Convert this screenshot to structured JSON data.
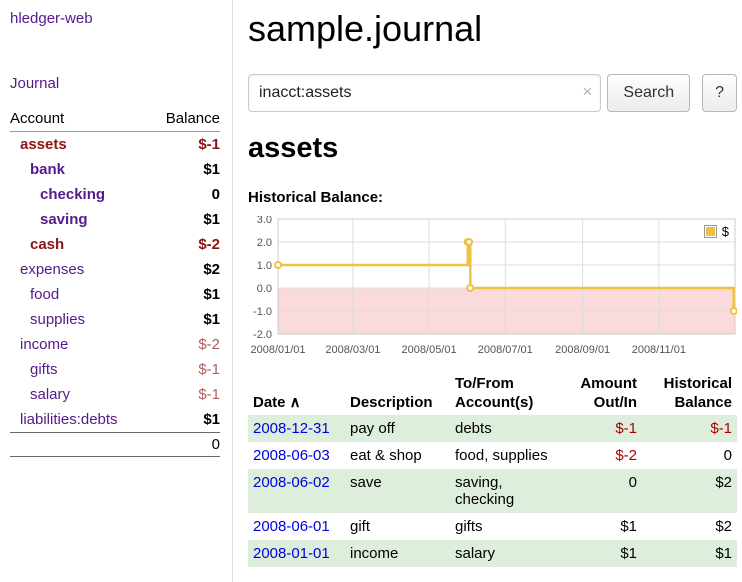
{
  "colors": {
    "purple": "#551a8b",
    "blue": "#0000dd",
    "negStrong": "#8b1414",
    "negTable": "#aa0000",
    "negSoft": "#b06060",
    "rowGreen": "#ddeedd"
  },
  "app": {
    "title": "hledger-web"
  },
  "sidebar": {
    "journal_label": "Journal",
    "account_col": "Account",
    "balance_col": "Balance",
    "accounts": [
      {
        "name": "assets",
        "balance": "$-1",
        "indent": 1,
        "name_class": "name-neg",
        "bal_class": "bal-neg"
      },
      {
        "name": "bank",
        "balance": "$1",
        "indent": 2,
        "name_class": "name-bold",
        "bal_class": "bal"
      },
      {
        "name": "checking",
        "balance": "0",
        "indent": 3,
        "name_class": "name-bold",
        "bal_class": "bal"
      },
      {
        "name": "saving",
        "balance": "$1",
        "indent": 3,
        "name_class": "name-bold",
        "bal_class": "bal"
      },
      {
        "name": "cash",
        "balance": "$-2",
        "indent": 2,
        "name_class": "name-neg",
        "bal_class": "bal-neg"
      },
      {
        "name": "expenses",
        "balance": "$2",
        "indent": 1,
        "name_class": "name",
        "bal_class": "bal"
      },
      {
        "name": "food",
        "balance": "$1",
        "indent": 2,
        "name_class": "name",
        "bal_class": "bal"
      },
      {
        "name": "supplies",
        "balance": "$1",
        "indent": 2,
        "name_class": "name",
        "bal_class": "bal"
      },
      {
        "name": "income",
        "balance": "$-2",
        "indent": 1,
        "name_class": "name",
        "bal_class": "bal-neg-soft"
      },
      {
        "name": "gifts",
        "balance": "$-1",
        "indent": 2,
        "name_class": "name",
        "bal_class": "bal-neg-soft"
      },
      {
        "name": "salary",
        "balance": "$-1",
        "indent": 2,
        "name_class": "name",
        "bal_class": "bal-neg-soft"
      },
      {
        "name": "liabilities:debts",
        "balance": "$1",
        "indent": 1,
        "name_class": "name",
        "bal_class": "bal"
      }
    ],
    "total": "0"
  },
  "main": {
    "title": "sample.journal",
    "account_title": "assets",
    "chart_label": "Historical Balance:"
  },
  "search": {
    "value": "inacct:assets",
    "clear_icon": "×",
    "search_label": "Search",
    "help_label": "?"
  },
  "chart_data": {
    "type": "line",
    "step": true,
    "title": "Historical Balance",
    "x_range": [
      "2008-01-01",
      "2009-01-01"
    ],
    "y_range": [
      -2,
      3
    ],
    "y_ticks": [
      3,
      2,
      1,
      0,
      -1,
      -2
    ],
    "x_ticks": [
      {
        "date": "2008-01-01",
        "label": "2008/01/01"
      },
      {
        "date": "2008-03-01",
        "label": "2008/03/01"
      },
      {
        "date": "2008-05-01",
        "label": "2008/05/01"
      },
      {
        "date": "2008-07-01",
        "label": "2008/07/01"
      },
      {
        "date": "2008-09-01",
        "label": "2008/09/01"
      },
      {
        "date": "2008-11-01",
        "label": "2008/11/01"
      }
    ],
    "series": [
      {
        "name": "$",
        "color": "#edc240",
        "points": [
          [
            "2008-01-01",
            1
          ],
          [
            "2008-06-01",
            2
          ],
          [
            "2008-06-02",
            2
          ],
          [
            "2008-06-03",
            0
          ],
          [
            "2008-12-31",
            -1
          ]
        ]
      }
    ],
    "negative_region": {
      "from": 0,
      "to": -2,
      "color": "#fadada"
    },
    "legend": {
      "label": "$",
      "position": "top-right"
    },
    "grid": true
  },
  "register": {
    "sort_icon": "∧",
    "columns": [
      {
        "line1": "Date",
        "line2": "",
        "align": "left",
        "sortable": true
      },
      {
        "line1": "Description",
        "line2": "",
        "align": "left"
      },
      {
        "line1": "To/From",
        "line2": "Account(s)",
        "align": "left"
      },
      {
        "line1": "Amount",
        "line2": "Out/In",
        "align": "right"
      },
      {
        "line1": "Historical",
        "line2": "Balance",
        "align": "right"
      }
    ],
    "rows": [
      {
        "date": "2008-12-31",
        "description": "pay off",
        "accounts": "debts",
        "amount": "$-1",
        "amount_neg": true,
        "balance": "$-1",
        "balance_neg": true,
        "shaded": true
      },
      {
        "date": "2008-06-03",
        "description": "eat & shop",
        "accounts": "food, supplies",
        "amount": "$-2",
        "amount_neg": true,
        "balance": "0",
        "balance_neg": false,
        "shaded": false
      },
      {
        "date": "2008-06-02",
        "description": "save",
        "accounts": "saving, checking",
        "amount": "0",
        "amount_neg": false,
        "balance": "$2",
        "balance_neg": false,
        "shaded": true
      },
      {
        "date": "2008-06-01",
        "description": "gift",
        "accounts": "gifts",
        "amount": "$1",
        "amount_neg": false,
        "balance": "$2",
        "balance_neg": false,
        "shaded": false
      },
      {
        "date": "2008-01-01",
        "description": "income",
        "accounts": "salary",
        "amount": "$1",
        "amount_neg": false,
        "balance": "$1",
        "balance_neg": false,
        "shaded": true
      }
    ]
  }
}
